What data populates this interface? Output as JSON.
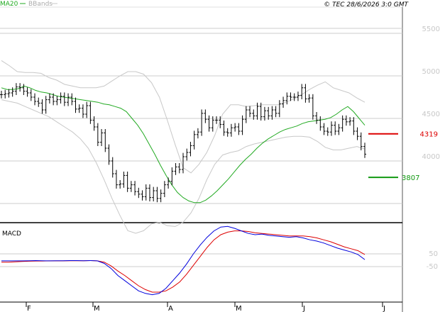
{
  "header": {
    "legend_ma": "MA20",
    "legend_bb": "BBands",
    "copyright": "© TEC 28/6/2026 3:0 GMT"
  },
  "colors": {
    "ma": "#22aa22",
    "bands": "#c8c8c8",
    "price": "#000000",
    "resistance": "#dd0000",
    "support": "#119911",
    "macd": "#0000dd",
    "signal": "#dd0000",
    "grid": "#cccccc"
  },
  "chart_data": [
    {
      "type": "ohlc",
      "panel": "price",
      "y_ticks": [
        5500,
        5000,
        4500,
        4000
      ],
      "x_ticks": [
        "F",
        "M",
        "A",
        "M",
        "J",
        "J"
      ],
      "close": [
        4780,
        4790,
        4800,
        4820,
        4870,
        4860,
        4820,
        4800,
        4750,
        4700,
        4680,
        4600,
        4720,
        4750,
        4700,
        4720,
        4760,
        4690,
        4750,
        4700,
        4610,
        4620,
        4550,
        4650,
        4480,
        4400,
        4220,
        4330,
        4150,
        4000,
        3850,
        3720,
        3730,
        3830,
        3680,
        3720,
        3640,
        3610,
        3580,
        3680,
        3570,
        3650,
        3560,
        3620,
        3720,
        3760,
        3880,
        3930,
        3900,
        4050,
        4100,
        4180,
        4310,
        4340,
        4560,
        4490,
        4390,
        4480,
        4480,
        4430,
        4340,
        4330,
        4390,
        4400,
        4350,
        4490,
        4600,
        4560,
        4530,
        4640,
        4520,
        4590,
        4530,
        4600,
        4560,
        4670,
        4710,
        4760,
        4750,
        4750,
        4770,
        4860,
        4730,
        4740,
        4530,
        4480,
        4400,
        4350,
        4340,
        4420,
        4350,
        4390,
        4490,
        4460,
        4470,
        4350,
        4290,
        4170,
        4080
      ],
      "ma20": [
        4860,
        4840,
        4840,
        4850,
        4880,
        4860,
        4830,
        4810,
        4800,
        4780,
        4760,
        4750,
        4740,
        4730,
        4720,
        4710,
        4700,
        4690,
        4670,
        4660,
        4640,
        4620,
        4580,
        4500,
        4420,
        4320,
        4200,
        4080,
        3950,
        3830,
        3720,
        3630,
        3570,
        3530,
        3510,
        3510,
        3540,
        3590,
        3650,
        3720,
        3790,
        3870,
        3950,
        4020,
        4080,
        4150,
        4210,
        4260,
        4300,
        4340,
        4370,
        4390,
        4410,
        4440,
        4460,
        4470,
        4480,
        4490,
        4510,
        4550,
        4600,
        4640,
        4580,
        4500,
        4420
      ],
      "bb_upper": [
        5180,
        5120,
        5050,
        5040,
        5040,
        5030,
        4980,
        4950,
        4900,
        4880,
        4860,
        4860,
        4860,
        4880,
        4940,
        5000,
        5050,
        5050,
        5020,
        4920,
        4750,
        4480,
        4190,
        3920,
        3860,
        3960,
        4100,
        4300,
        4550,
        4660,
        4660,
        4640,
        4650,
        4660,
        4660,
        4660,
        4690,
        4730,
        4780,
        4840,
        4890,
        4930,
        4860,
        4830,
        4800,
        4740,
        4690
      ],
      "bb_lower": [
        4720,
        4700,
        4680,
        4640,
        4600,
        4560,
        4520,
        4460,
        4400,
        4340,
        4260,
        4150,
        3980,
        3780,
        3560,
        3360,
        3180,
        3150,
        3180,
        3260,
        3280,
        3240,
        3230,
        3280,
        3390,
        3560,
        3780,
        3960,
        4070,
        4100,
        4120,
        4170,
        4200,
        4220,
        4240,
        4260,
        4280,
        4290,
        4290,
        4280,
        4230,
        4160,
        4130,
        4130,
        4150,
        4170,
        4140
      ],
      "resistance": {
        "value": 4319,
        "label": "4319"
      },
      "support": {
        "value": 3807,
        "label": "3807"
      }
    },
    {
      "type": "line",
      "panel": "macd",
      "title": "MACD",
      "y_ticks": [
        "50",
        "-50"
      ],
      "series": [
        {
          "values": [
            -5,
            -5,
            -5,
            -5,
            -4,
            -3,
            -4,
            -5,
            -4,
            -4,
            -3,
            -3,
            -4,
            -3,
            -5,
            -25,
            -65,
            -120,
            -160,
            -200,
            -240,
            -260,
            -270,
            -260,
            -220,
            -160,
            -100,
            -30,
            50,
            120,
            180,
            230,
            260,
            265,
            250,
            230,
            210,
            200,
            205,
            195,
            190,
            185,
            180,
            185,
            175,
            160,
            150,
            135,
            115,
            95,
            80,
            65,
            45,
            5
          ]
        },
        {
          "values": [
            -15,
            -15,
            -12,
            -10,
            -8,
            -6,
            -6,
            -5,
            -5,
            -5,
            -4,
            -4,
            -4,
            -3,
            -5,
            -15,
            -45,
            -85,
            -120,
            -160,
            -200,
            -230,
            -250,
            -250,
            -240,
            -210,
            -170,
            -110,
            -40,
            30,
            100,
            160,
            200,
            220,
            230,
            230,
            225,
            215,
            210,
            205,
            200,
            195,
            190,
            190,
            190,
            185,
            175,
            160,
            145,
            125,
            105,
            90,
            75,
            45
          ]
        }
      ]
    }
  ]
}
